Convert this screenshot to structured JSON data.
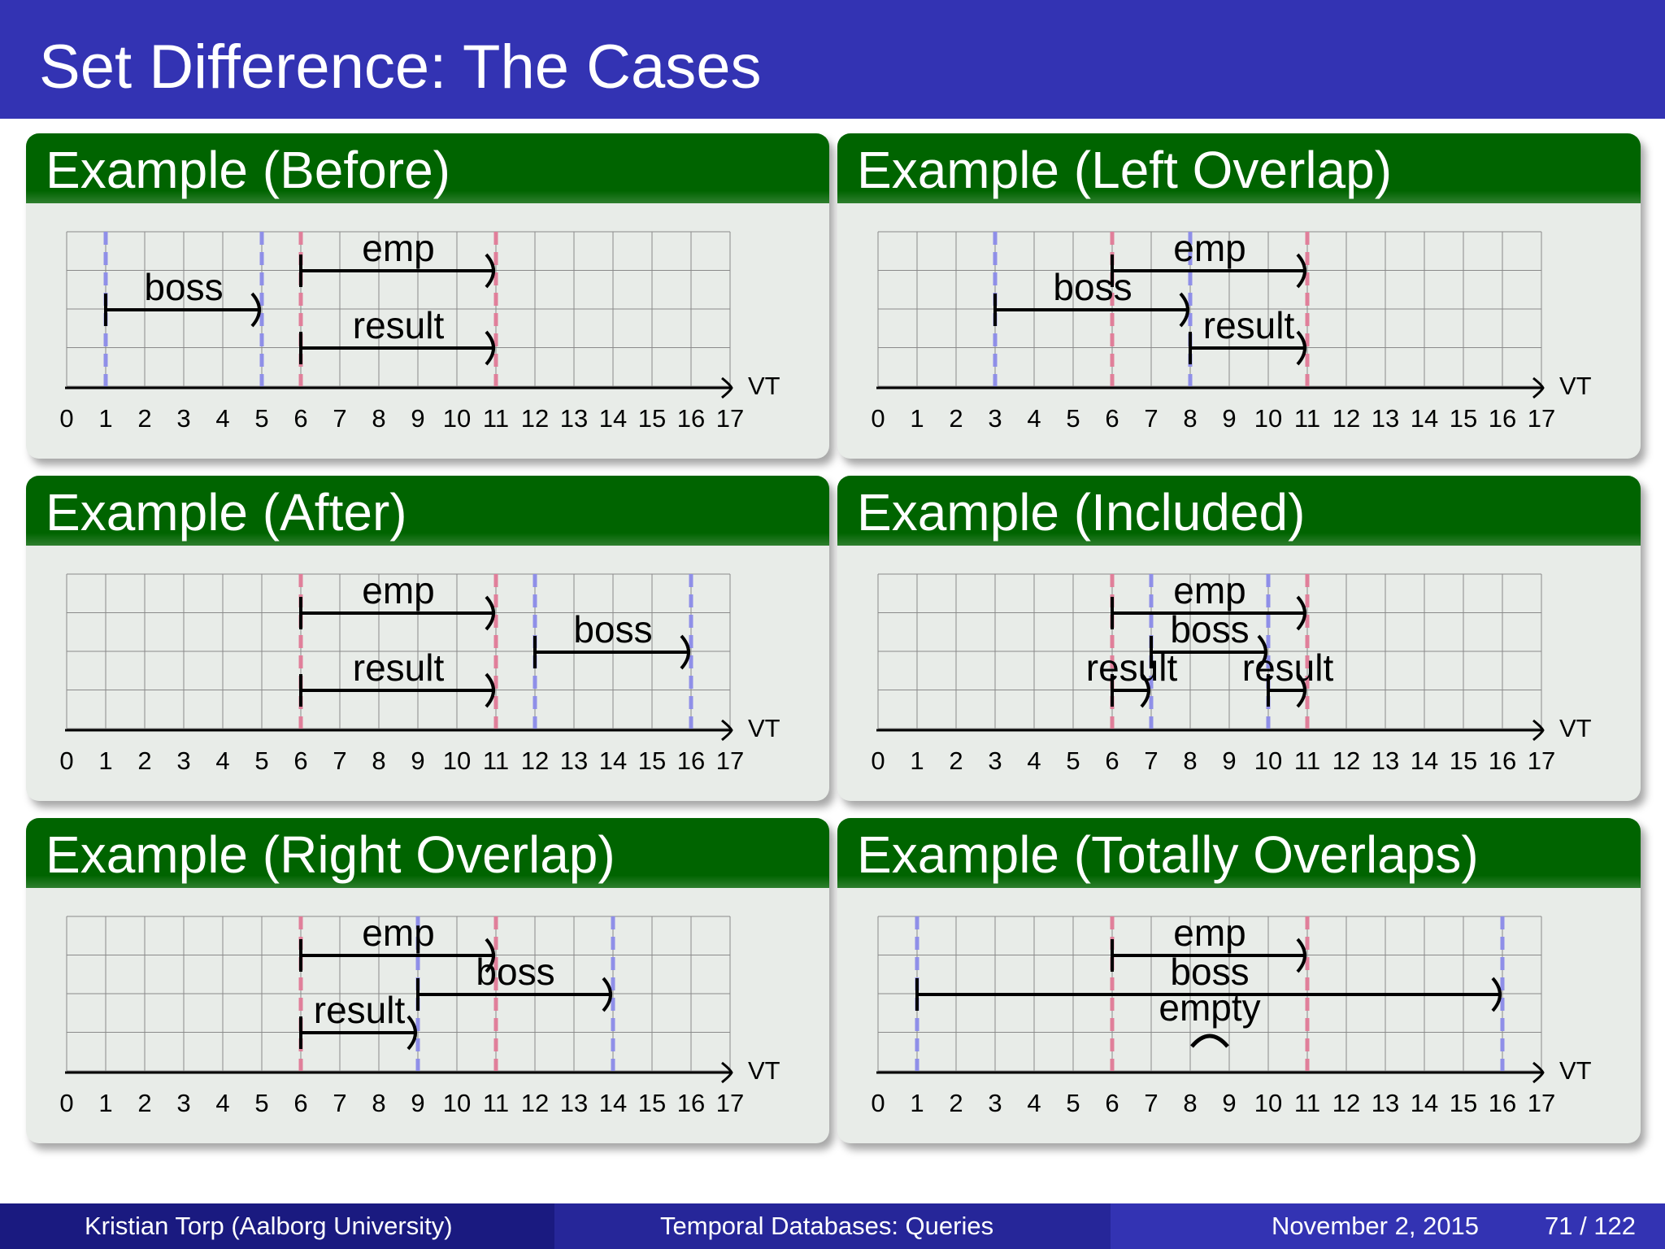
{
  "slide": {
    "title": "Set Difference: The Cases"
  },
  "axis_label": "VT",
  "ticks": [
    "0",
    "1",
    "2",
    "3",
    "4",
    "5",
    "6",
    "7",
    "8",
    "9",
    "10",
    "11",
    "12",
    "13",
    "14",
    "15",
    "16",
    "17"
  ],
  "colors": {
    "emp_marker": "#e07f9a",
    "boss_marker": "#8f8fe8",
    "header_green": "#006400",
    "title_blue": "#3333b3"
  },
  "panels": [
    {
      "title": "Example (Before)",
      "emp_markers": [
        6,
        11
      ],
      "boss_markers": [
        1,
        5
      ],
      "bars": [
        {
          "label": "emp",
          "start": 6,
          "end": 11,
          "row": 0
        },
        {
          "label": "boss",
          "start": 1,
          "end": 5,
          "row": 1
        },
        {
          "label": "result",
          "start": 6,
          "end": 11,
          "row": 2
        }
      ]
    },
    {
      "title": "Example (Left Overlap)",
      "emp_markers": [
        6,
        11
      ],
      "boss_markers": [
        3,
        8
      ],
      "bars": [
        {
          "label": "emp",
          "start": 6,
          "end": 11,
          "row": 0
        },
        {
          "label": "boss",
          "start": 3,
          "end": 8,
          "row": 1
        },
        {
          "label": "result",
          "start": 8,
          "end": 11,
          "row": 2
        }
      ]
    },
    {
      "title": "Example (After)",
      "emp_markers": [
        6,
        11
      ],
      "boss_markers": [
        12,
        16
      ],
      "bars": [
        {
          "label": "emp",
          "start": 6,
          "end": 11,
          "row": 0
        },
        {
          "label": "boss",
          "start": 12,
          "end": 16,
          "row": 1
        },
        {
          "label": "result",
          "start": 6,
          "end": 11,
          "row": 2
        }
      ]
    },
    {
      "title": "Example (Included)",
      "emp_markers": [
        6,
        11
      ],
      "boss_markers": [
        7,
        10
      ],
      "bars": [
        {
          "label": "emp",
          "start": 6,
          "end": 11,
          "row": 0
        },
        {
          "label": "boss",
          "start": 7,
          "end": 10,
          "row": 1
        },
        {
          "label": "result",
          "start": 6,
          "end": 7,
          "row": 2
        },
        {
          "label": "result",
          "start": 10,
          "end": 11,
          "row": 2
        }
      ]
    },
    {
      "title": "Example (Right Overlap)",
      "emp_markers": [
        6,
        11
      ],
      "boss_markers": [
        9,
        14
      ],
      "bars": [
        {
          "label": "emp",
          "start": 6,
          "end": 11,
          "row": 0
        },
        {
          "label": "boss",
          "start": 9,
          "end": 14,
          "row": 1
        },
        {
          "label": "result",
          "start": 6,
          "end": 9,
          "row": 2
        }
      ]
    },
    {
      "title": "Example (Totally Overlaps)",
      "emp_markers": [
        6,
        11
      ],
      "boss_markers": [
        1,
        16
      ],
      "bars": [
        {
          "label": "emp",
          "start": 6,
          "end": 11,
          "row": 0
        },
        {
          "label": "boss",
          "start": 1,
          "end": 16,
          "row": 1
        }
      ],
      "empty": {
        "label": "empty",
        "at": 8.5
      }
    }
  ],
  "footer": {
    "author": "Kristian Torp  (Aalborg University)",
    "course": "Temporal Databases: Queries",
    "date": "November 2, 2015",
    "page": "71 / 122"
  }
}
